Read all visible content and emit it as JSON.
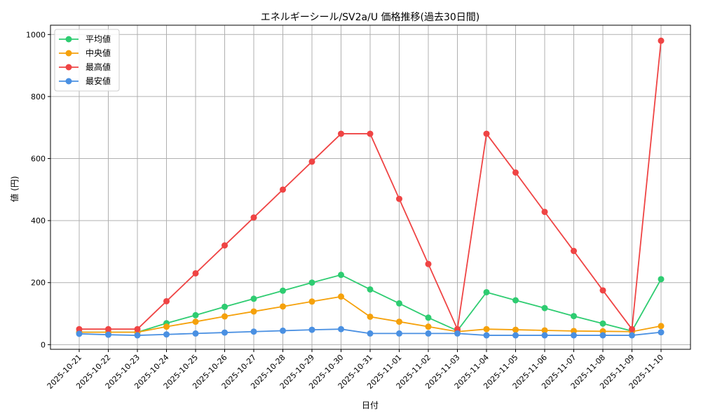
{
  "chart_data": {
    "type": "line",
    "title": "エネルギーシール/SV2a/U 価格推移(過去30日間)",
    "xlabel": "日付",
    "ylabel": "値 (円)",
    "categories": [
      "2025-10-21",
      "2025-10-22",
      "2025-10-23",
      "2025-10-24",
      "2025-10-25",
      "2025-10-26",
      "2025-10-27",
      "2025-10-28",
      "2025-10-29",
      "2025-10-30",
      "2025-10-31",
      "2025-11-01",
      "2025-11-02",
      "2025-11-03",
      "2025-11-04",
      "2025-11-05",
      "2025-11-06",
      "2025-11-07",
      "2025-11-08",
      "2025-11-09",
      "2025-11-10"
    ],
    "ylim": [
      -15,
      1030
    ],
    "yticks": [
      0,
      200,
      400,
      600,
      800,
      1000
    ],
    "grid": true,
    "legend_position": "top-left",
    "series": [
      {
        "name": "平均値",
        "color": "#2ecc71",
        "values": [
          40,
          40,
          40,
          69,
          95,
          122,
          148,
          174,
          200,
          225,
          178,
          133,
          87,
          45,
          169,
          143,
          118,
          92,
          68,
          44,
          211
        ]
      },
      {
        "name": "中央値",
        "color": "#f5a10b",
        "values": [
          40,
          40,
          40,
          58,
          74,
          91,
          107,
          123,
          139,
          155,
          90,
          74,
          58,
          42,
          50,
          48,
          46,
          44,
          43,
          42,
          60
        ]
      },
      {
        "name": "最高値",
        "color": "#ef4444",
        "values": [
          50,
          50,
          50,
          140,
          230,
          320,
          410,
          500,
          590,
          680,
          680,
          470,
          260,
          50,
          680,
          555,
          428,
          302,
          175,
          50,
          980
        ]
      },
      {
        "name": "最安値",
        "color": "#4a90e2",
        "values": [
          35,
          32,
          30,
          33,
          36,
          39,
          42,
          45,
          48,
          50,
          36,
          36,
          36,
          36,
          30,
          30,
          30,
          30,
          30,
          30,
          40
        ]
      }
    ]
  }
}
